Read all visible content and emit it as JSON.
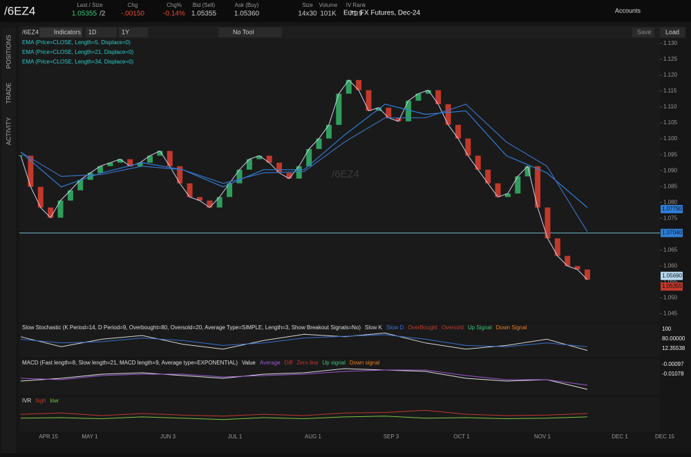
{
  "header": {
    "symbol": "/6EZ4",
    "fields": [
      {
        "label": "Last / Size",
        "value": "1.05355",
        "extra": "/2"
      },
      {
        "label": "Chg",
        "value": "-.00150"
      },
      {
        "label": "Chg%",
        "value": "-0.14%"
      },
      {
        "label": "Bid (Sell)",
        "value": "1.05355"
      },
      {
        "label": "Ask (Buy)",
        "value": "1.05360"
      },
      {
        "label": "Size",
        "value": "14x30"
      },
      {
        "label": "Volume",
        "value": "101K"
      },
      {
        "label": "IV Rank",
        "value": "71.9"
      }
    ],
    "description": "Euro FX Futures, Dec-24",
    "accounts": "Accounts"
  },
  "toolbar": {
    "symbol": "/6EZ4",
    "indicators": "Indicators",
    "period": "1D",
    "range": "1Y",
    "tool": "No Tool",
    "save": "Save",
    "load": "Load"
  },
  "side_tabs": [
    "POSITIONS",
    "TRADE",
    "ACTIVITY"
  ],
  "chart_data": {
    "type": "candlestick",
    "watermark": "/6EZ4",
    "studies": [
      "EMA (Price=CLOSE, Length=5, Displace=0)",
      "EMA (Price=CLOSE, Length=21, Displace=0)",
      "EMA (Price=CLOSE, Length=34, Displace=0)"
    ],
    "up_color": "#2f9e5c",
    "down_color": "#c0392b",
    "close": [
      1.0947,
      1.0849,
      1.0784,
      1.0752,
      1.0806,
      1.0838,
      1.0871,
      1.0893,
      1.0914,
      1.0925,
      1.0936,
      1.0914,
      1.0925,
      1.0947,
      1.0962,
      1.0914,
      1.086,
      1.0817,
      1.0806,
      1.0784,
      1.0817,
      1.086,
      1.0903,
      1.0936,
      1.0947,
      1.0925,
      1.0893,
      1.0875,
      1.0914,
      1.0968,
      1.1001,
      1.1044,
      1.1142,
      1.1185,
      1.1153,
      1.1088,
      1.1098,
      1.1066,
      1.1055,
      1.112,
      1.1142,
      1.1153,
      1.1109,
      1.1044,
      1.1001,
      1.0947,
      1.0903,
      1.086,
      1.0817,
      1.0828,
      1.0882,
      1.0914,
      1.0784,
      1.0687,
      1.0632,
      1.06,
      1.0589,
      1.0557
    ],
    "series": [
      {
        "name": "EMA 21",
        "color": "#2f7fd8",
        "values": [
          1.0958,
          1.0849,
          1.0893,
          1.0925,
          1.0903,
          1.0849,
          1.0903,
          1.0903,
          1.1012,
          1.1109,
          1.1077,
          1.1088,
          1.0947,
          1.0893,
          1.0784
        ]
      },
      {
        "name": "EMA 34",
        "color": "#3a6fc0",
        "values": [
          1.0958,
          1.0882,
          1.0888,
          1.0914,
          1.0903,
          1.086,
          1.0893,
          1.0897,
          1.099,
          1.1066,
          1.1066,
          1.1109,
          1.099,
          1.0914,
          1.0708
        ]
      }
    ],
    "hline": 1.0704,
    "ylim": [
      1.0425,
      1.1315
    ],
    "yticks": [
      {
        "value": 1.045,
        "label": "1.045"
      },
      {
        "value": 1.05,
        "label": "1.050"
      },
      {
        "value": 1.055,
        "label": "1.055"
      },
      {
        "value": 1.06,
        "label": "1.060"
      },
      {
        "value": 1.065,
        "label": "1.065"
      },
      {
        "value": 1.075,
        "label": "1.075"
      },
      {
        "value": 1.08,
        "label": "1.080"
      },
      {
        "value": 1.085,
        "label": "1.085"
      },
      {
        "value": 1.09,
        "label": "1.090"
      },
      {
        "value": 1.095,
        "label": "1.095"
      },
      {
        "value": 1.1,
        "label": "1.100"
      },
      {
        "value": 1.105,
        "label": "1.105"
      },
      {
        "value": 1.11,
        "label": "1.110"
      },
      {
        "value": 1.115,
        "label": "1.115"
      },
      {
        "value": 1.12,
        "label": "1.120"
      },
      {
        "value": 1.125,
        "label": "1.125"
      },
      {
        "value": 1.13,
        "label": "1.130"
      }
    ],
    "price_labels": [
      {
        "value": 1.0779,
        "label": "1.07790",
        "color": "#2f7fd8"
      },
      {
        "value": 1.0704,
        "label": "1.07040",
        "color": "#2f7fd8"
      },
      {
        "value": 1.0569,
        "label": "1.05690",
        "color": "#b8d8f0"
      },
      {
        "value": 1.05355,
        "label": "1.05355",
        "color": "#c0392b"
      }
    ],
    "time_labels": [
      "APR 15",
      "MAY 1",
      "JUN 3",
      "JUL 1",
      "AUG 1",
      "SEP 3",
      "OCT 1",
      "NOV 1",
      "DEC 1",
      "DEC 15"
    ]
  },
  "stochastic": {
    "legend": "Slow Stochastic (K Period=14, D Period=9, Overbought=80, Oversold=20, Average Type=SIMPLE, Length=3, Show Breakout Signals=No)",
    "ylim": [
      0,
      100
    ],
    "series": [
      {
        "name": "Slow K",
        "color": "#d8d8d8",
        "values": [
          70,
          30,
          60,
          75,
          40,
          20,
          55,
          80,
          70,
          85,
          45,
          20,
          35,
          60,
          15
        ]
      },
      {
        "name": "Slow D",
        "color": "#3b6fd0",
        "values": [
          60,
          45,
          50,
          65,
          55,
          35,
          45,
          65,
          72,
          78,
          60,
          35,
          30,
          45,
          30
        ]
      }
    ],
    "extra_legend": [
      "OverBought",
      "Oversold",
      "Up Signal",
      "Down Signal"
    ],
    "right_labels": [
      "100",
      "80.00000",
      "12.35538"
    ]
  },
  "macd": {
    "legend": "MACD (Fast length=8, Slow length=21, MACD length=9, Average type=EXPONENTIAL)",
    "ylim": [
      -0.012,
      0.008
    ],
    "series": [
      {
        "name": "Value",
        "color": "#e0e0e0",
        "values": [
          -0.004,
          -0.002,
          0.001,
          0.002,
          0.0,
          -0.002,
          0.001,
          0.002,
          0.005,
          0.004,
          0.003,
          -0.002,
          -0.004,
          -0.003,
          -0.01
        ]
      },
      {
        "name": "Average",
        "color": "#9b59d0",
        "values": [
          -0.002,
          -0.003,
          0.0,
          0.001,
          0.001,
          -0.001,
          0.0,
          0.001,
          0.003,
          0.004,
          0.004,
          0.0,
          -0.003,
          -0.003,
          -0.007
        ]
      }
    ],
    "extra_legend": [
      "Diff",
      "Zero line",
      "Up signal",
      "Down signal"
    ],
    "right_labels": [
      "-0.00097",
      "-0.01078"
    ]
  },
  "ivr": {
    "legend": "IVR",
    "ylim": [
      0,
      100
    ],
    "series": [
      {
        "name": "high",
        "color": "#c0392b",
        "values": [
          55,
          60,
          50,
          58,
          52,
          48,
          55,
          50,
          60,
          62,
          70,
          55,
          50,
          52,
          58
        ]
      },
      {
        "name": "low",
        "color": "#7ac943",
        "values": [
          40,
          42,
          38,
          45,
          40,
          35,
          42,
          38,
          45,
          48,
          40,
          42,
          38,
          40,
          45
        ]
      }
    ]
  }
}
